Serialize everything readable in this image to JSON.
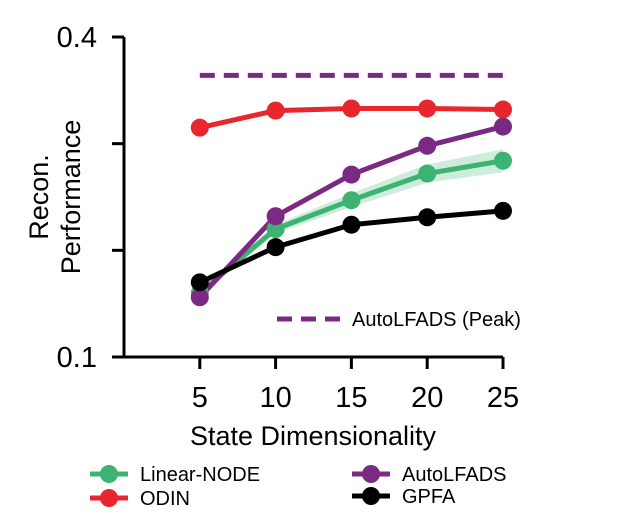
{
  "chart_data": {
    "type": "line",
    "title": "",
    "xlabel": "State Dimensionality",
    "ylabel": [
      "Recon.",
      "Performance"
    ],
    "x": [
      5,
      10,
      15,
      20,
      25
    ],
    "xlim": [
      0,
      25
    ],
    "ylim": [
      0.1,
      0.4
    ],
    "xticks": [
      5,
      10,
      15,
      20,
      25
    ],
    "yticks_labeled": [
      0.1,
      0.4
    ],
    "yticks": [
      0.1,
      0.2,
      0.3,
      0.4
    ],
    "ytick_labels": [
      "0.1",
      "0.4"
    ],
    "grid": false,
    "series": [
      {
        "name": "Linear-NODE",
        "color": "#3cb371",
        "values": [
          0.16,
          0.22,
          0.247,
          0.272,
          0.284
        ],
        "shaded_band": true
      },
      {
        "name": "ODIN",
        "color": "#e8262d",
        "values": [
          0.315,
          0.331,
          0.333,
          0.333,
          0.332
        ]
      },
      {
        "name": "AutoLFADS",
        "color": "#7b2a84",
        "values": [
          0.156,
          0.232,
          0.271,
          0.298,
          0.316
        ]
      },
      {
        "name": "GPFA",
        "color": "#000000",
        "values": [
          0.17,
          0.203,
          0.224,
          0.231,
          0.237
        ]
      }
    ],
    "reference_line": {
      "name": "AutoLFADS (Peak)",
      "color": "#7b2a84",
      "style": "dashed",
      "value": 0.364,
      "x_range": [
        5,
        25
      ]
    },
    "legend": {
      "placement": "bottom",
      "entries": [
        "Linear-NODE",
        "ODIN",
        "AutoLFADS",
        "GPFA"
      ]
    }
  }
}
